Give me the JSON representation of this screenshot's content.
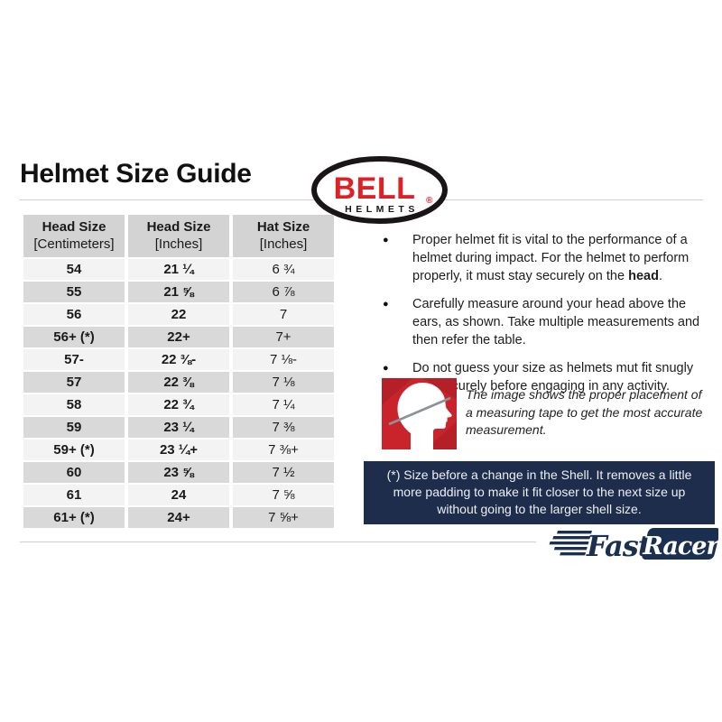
{
  "page": {
    "title": "Helmet Size Guide"
  },
  "bell_logo": {
    "brand": "BELL",
    "registered": "®",
    "sub": "HELMETS",
    "red": "#de2127",
    "black": "#1a1517"
  },
  "table": {
    "headers": [
      {
        "line1": "Head Size",
        "line2": "[Centimeters]"
      },
      {
        "line1": "Head Size",
        "line2": "[Inches]"
      },
      {
        "line1": "Hat Size",
        "line2": "[Inches]"
      }
    ],
    "rows": [
      [
        "54",
        "21 ¼",
        "6 ¾"
      ],
      [
        "55",
        "21 ⅝",
        "6 ⅞"
      ],
      [
        "56",
        "22",
        "7"
      ],
      [
        "56+ (*)",
        "22+",
        "7+"
      ],
      [
        "57-",
        "22 ⅜-",
        "7 ⅛-"
      ],
      [
        "57",
        "22 ⅜",
        "7 ⅛"
      ],
      [
        "58",
        "22 ¾",
        "7 ¼"
      ],
      [
        "59",
        "23 ¼",
        "7 ⅜"
      ],
      [
        "59+ (*)",
        "23 ¼+",
        "7 ⅜+"
      ],
      [
        "60",
        "23 ⅝",
        "7 ½"
      ],
      [
        "61",
        "24",
        "7 ⅝"
      ],
      [
        "61+ (*)",
        "24+",
        "7 ⅝+"
      ]
    ]
  },
  "bullets": [
    {
      "pre": "Proper helmet fit is vital to the performance of a helmet during impact. For the helmet to perform properly, it must stay securely on the ",
      "bold": "head",
      "post": "."
    },
    {
      "pre": "Carefully measure around your head above the ears, as shown. Take multiple measurements and then refer the table.",
      "bold": "",
      "post": ""
    },
    {
      "pre": "Do not guess your size as helmets mut fit snugly and securely before engaging in any activity.",
      "bold": "",
      "post": ""
    }
  ],
  "figure": {
    "caption": "The image shows the proper placement of a measuring tape to get the most accurate measurement.",
    "red": "#c9242b"
  },
  "note": {
    "text": "(*) Size before a change in the Shell. It removes a little more padding to make it fit closer to the next size up without going to the larger shell size.",
    "bg": "#1e2d4b"
  },
  "footer_logo": {
    "fast": "Fast",
    "racer": "Racer",
    "navy": "#1b3051"
  }
}
